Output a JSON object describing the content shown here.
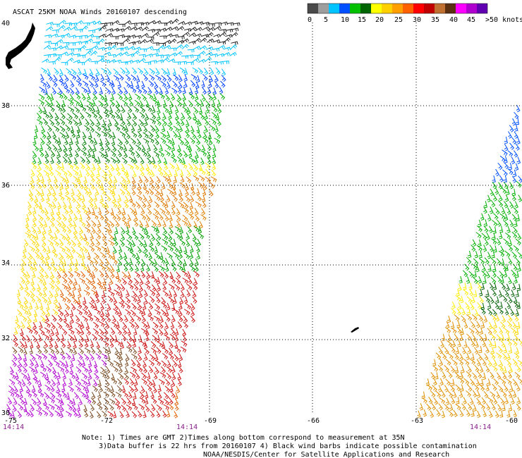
{
  "title": "ASCAT 25KM NOAA Winds 20160107 descending",
  "legend": {
    "colors": [
      "#4a4a4a",
      "#9e9e9e",
      "#00c4ff",
      "#0050ff",
      "#00c000",
      "#006400",
      "#ffff00",
      "#ffd000",
      "#ffa000",
      "#ff6000",
      "#ff0000",
      "#c00000",
      "#c07030",
      "#5a3010",
      "#ff00ff",
      "#b000d0",
      "#6000b0"
    ],
    "labels": [
      "0",
      "5",
      "10",
      "15",
      "20",
      "25",
      "30",
      "35",
      "40",
      "45",
      ">50 knots"
    ]
  },
  "lat_labels": [
    "40",
    "38",
    "36",
    "34",
    "32",
    "30"
  ],
  "lon_labels": [
    "-75",
    "-72",
    "-69",
    "-66",
    "-63",
    "-60"
  ],
  "time_labels": [
    "14:14",
    "14:14",
    "14:14"
  ],
  "notes": [
    "Note: 1) Times are GMT 2)Times along bottom correspond to measurement at 35N",
    "3)Data buffer is 22 hrs from 20160107 4) Black wind barbs indicate possible contamination",
    "NOAA/NESDIS/Center for Satellite Applications and Research"
  ]
}
